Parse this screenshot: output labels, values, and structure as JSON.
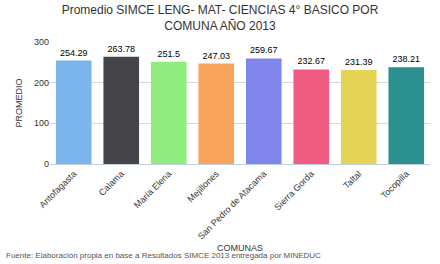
{
  "chart_data": {
    "type": "bar",
    "title": "Promedio SIMCE LENG- MAT- CIENCIAS 4° BASICO POR\nCOMUNA AÑO 2013",
    "x_label": "COMUNAS",
    "y_label": "PROMEDIO",
    "annotations": [
      "Fuente: Elaboración propia en base a Resultados SIMCE 2013 entregada por MINEDUC"
    ],
    "categories": [
      "Antofagasta",
      "Calama",
      "María Elena",
      "Mejillones",
      "San Pedro de Atacama",
      "Sierra Gorda",
      "Taltal",
      "Tocopilla"
    ],
    "values": [
      254.29,
      263.78,
      251.5,
      247.03,
      259.67,
      232.67,
      231.39,
      238.21
    ],
    "colors": [
      "#7cb5ec",
      "#434348",
      "#90ed7d",
      "#f7a35c",
      "#8085e9",
      "#f15c80",
      "#e4d354",
      "#2b908f"
    ],
    "ylim": [
      0,
      300
    ],
    "yticks": [
      0,
      100,
      200,
      300
    ],
    "grid": true,
    "data_labels": true
  }
}
